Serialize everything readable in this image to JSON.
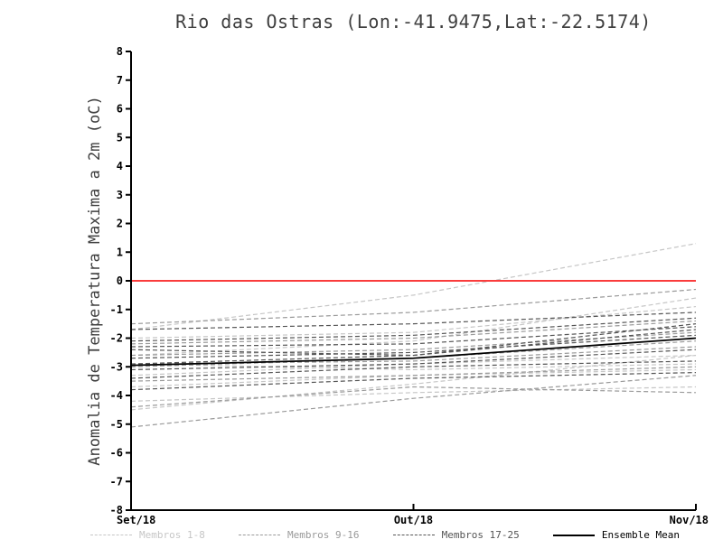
{
  "chart_data": {
    "type": "line",
    "title": "Rio das Ostras (Lon:-41.9475,Lat:-22.5174)",
    "ylabel": "Anomalia de Temperatura Maxima a 2m (oC)",
    "xlabel": "",
    "x": [
      "Set/18",
      "Out/18",
      "Nov/18"
    ],
    "ylim": [
      -8,
      8
    ],
    "ytick_step": 1,
    "grid": false,
    "zero_line_color": "#fa3c3c",
    "axis_color": "#000000",
    "groups": [
      {
        "name": "Membros 1-8",
        "color": "#c6c6c6",
        "style": "dashed",
        "members": [
          [
            -1.7,
            -0.5,
            1.3
          ],
          [
            -4.5,
            -3.6,
            -2.6
          ],
          [
            -2.0,
            -1.8,
            -0.9
          ],
          [
            -3.3,
            -2.9,
            -2.6
          ],
          [
            -2.6,
            -2.1,
            -0.6
          ],
          [
            -4.2,
            -3.9,
            -3.7
          ],
          [
            -2.9,
            -3.1,
            -2.9
          ],
          [
            -3.7,
            -3.3,
            -3.1
          ]
        ]
      },
      {
        "name": "Membros 9-16",
        "color": "#9a9a9a",
        "style": "dashed",
        "members": [
          [
            -1.5,
            -1.1,
            -0.3
          ],
          [
            -2.2,
            -2.0,
            -1.4
          ],
          [
            -3.0,
            -2.7,
            -2.1
          ],
          [
            -3.5,
            -3.3,
            -3.0
          ],
          [
            -2.6,
            -2.4,
            -1.8
          ],
          [
            -4.4,
            -3.7,
            -3.9
          ],
          [
            -2.9,
            -2.8,
            -2.3
          ],
          [
            -5.1,
            -4.1,
            -3.3
          ]
        ]
      },
      {
        "name": "Membros 17-25",
        "color": "#555555",
        "style": "dashed",
        "members": [
          [
            -1.7,
            -1.5,
            -1.1
          ],
          [
            -2.3,
            -2.2,
            -1.6
          ],
          [
            -2.7,
            -2.5,
            -1.9
          ],
          [
            -3.1,
            -2.9,
            -2.4
          ],
          [
            -3.4,
            -3.0,
            -2.8
          ],
          [
            -2.4,
            -2.6,
            -1.7
          ],
          [
            -2.9,
            -2.6,
            -1.5
          ],
          [
            -3.8,
            -3.4,
            -3.2
          ],
          [
            -2.1,
            -1.9,
            -1.3
          ]
        ]
      }
    ],
    "mean": {
      "name": "Ensemble Mean",
      "color": "#000000",
      "style": "solid",
      "values": [
        -2.95,
        -2.7,
        -2.0
      ]
    },
    "legend": [
      {
        "label": "Membros 1-8",
        "color": "#c6c6c6",
        "style": "dashed"
      },
      {
        "label": "Membros 9-16",
        "color": "#9a9a9a",
        "style": "dashed"
      },
      {
        "label": "Membros 17-25",
        "color": "#555555",
        "style": "dashed"
      },
      {
        "label": "Ensemble Mean",
        "color": "#000000",
        "style": "solid"
      }
    ],
    "legend_position": "bottom"
  }
}
